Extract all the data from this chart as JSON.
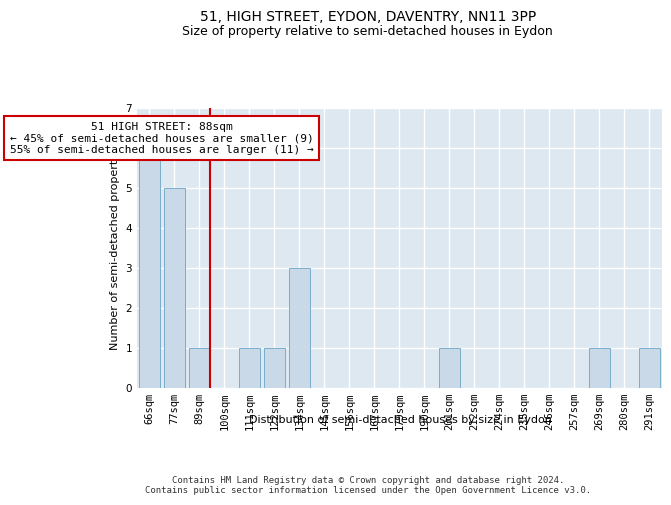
{
  "title1": "51, HIGH STREET, EYDON, DAVENTRY, NN11 3PP",
  "title2": "Size of property relative to semi-detached houses in Eydon",
  "xlabel": "Distribution of semi-detached houses by size in Eydon",
  "ylabel": "Number of semi-detached properties",
  "categories": [
    "66sqm",
    "77sqm",
    "89sqm",
    "100sqm",
    "111sqm",
    "122sqm",
    "134sqm",
    "145sqm",
    "156sqm",
    "167sqm",
    "179sqm",
    "190sqm",
    "201sqm",
    "212sqm",
    "224sqm",
    "235sqm",
    "246sqm",
    "257sqm",
    "269sqm",
    "280sqm",
    "291sqm"
  ],
  "values": [
    6,
    5,
    1,
    0,
    1,
    1,
    3,
    0,
    0,
    0,
    0,
    0,
    1,
    0,
    0,
    0,
    0,
    0,
    1,
    0,
    1
  ],
  "bar_color": "#c9d9e8",
  "bar_edge_color": "#7aadcc",
  "highlight_index": 2,
  "red_line_index": 2,
  "annotation_box_text": "51 HIGH STREET: 88sqm\n← 45% of semi-detached houses are smaller (9)\n55% of semi-detached houses are larger (11) →",
  "annotation_box_color": "#ffffff",
  "annotation_box_edge_color": "#cc0000",
  "ylim": [
    0,
    7
  ],
  "yticks": [
    0,
    1,
    2,
    3,
    4,
    5,
    6,
    7
  ],
  "footer_text": "Contains HM Land Registry data © Crown copyright and database right 2024.\nContains public sector information licensed under the Open Government Licence v3.0.",
  "bg_color": "#ffffff",
  "plot_bg_color": "#dde8f0",
  "grid_color": "#ffffff",
  "title1_fontsize": 10,
  "title2_fontsize": 9,
  "axis_label_fontsize": 8,
  "tick_fontsize": 7.5,
  "annotation_fontsize": 8,
  "footer_fontsize": 6.5
}
